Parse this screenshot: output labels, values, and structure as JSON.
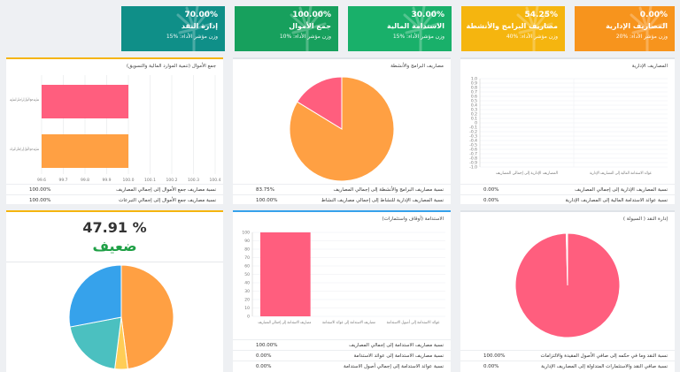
{
  "tiles": [
    {
      "pct": "70.00%",
      "title": "إدارة النقد",
      "sub": "وزن مؤشر الأداء: %15",
      "color": "#0f8f88"
    },
    {
      "pct": "100.00%",
      "title": "جمع الأموال",
      "sub": "وزن مؤشر الأداء: %10",
      "color": "#17a05d"
    },
    {
      "pct": "30.00%",
      "title": "الاستدامة المالية",
      "sub": "وزن مؤشر الأداء: %15",
      "color": "#19b06a"
    },
    {
      "pct": "54.25%",
      "title": "مصاريف البرامج والأنشطة",
      "sub": "وزن مؤشر الأداء: %40",
      "color": "#f5b50f"
    },
    {
      "pct": "0.00%",
      "title": "المصاريف الإدارية",
      "sub": "وزن مؤشر الأداء: %20",
      "color": "#f7941d"
    }
  ],
  "cards": {
    "funds": {
      "title": "جمع الأموال (تنمية الموارد المالية والتسويق)",
      "rows": [
        {
          "label": "نسبة مصاريف جمع الأموال إلى إجمالي المصاريف",
          "value": "100.00%"
        },
        {
          "label": "نسبة مصاريف جمع الأموال إلى إجمالي التبرعات",
          "value": "100.00%"
        }
      ]
    },
    "programs": {
      "title": "مصاريف البرامج والأنشطة",
      "rows": [
        {
          "label": "نسبة مصاريف البرامج والأنشطة إلى إجمالي المصاريف",
          "value": "83.75%"
        },
        {
          "label": "نسبة المصاريف الإدارية للنشاط إلى إجمالي مصاريف النشاط",
          "value": "100.00%"
        }
      ]
    },
    "admin": {
      "title": "المصاريف الإدارية",
      "rows": [
        {
          "label": "نسبة المصاريف الإدارية إلى إجمالي المصاريف",
          "value": "0.00%"
        },
        {
          "label": "نسبة عوائد الاستدامة المالية إلى المصاريف الإدارية",
          "value": "0.00%"
        }
      ]
    },
    "score": {
      "value": "47.91 %",
      "rating": "ضعيف"
    },
    "sustain": {
      "title": "الاستدامة (أوقاف واستثمارات)",
      "rows": [
        {
          "label": "نسبة مصاريف الاستدامة إلى إجمالي المصاريف",
          "value": "100.00%"
        },
        {
          "label": "نسبة مصاريف الاستدامة إلى عوائد الاستدامة",
          "value": "0.00%"
        },
        {
          "label": "نسبة عوائد الاستدامة إلى إجمالي أصول الاستدامة",
          "value": "0.00%"
        }
      ]
    },
    "cash": {
      "title": "إدارة النقد ( السيولة )",
      "rows": [
        {
          "label": "نسبة النقد وما في حكمه إلى صافي الأصول المقيدة والالتزامات",
          "value": "100.00%"
        },
        {
          "label": "نسبة صافي النقد والاستثمارات المتداولة إلى المصاريف الإدارية",
          "value": "0.00%"
        }
      ]
    }
  },
  "chart_data": [
    {
      "type": "bar",
      "orientation": "horizontal",
      "categories": [
        "مصاريف جمع الأموال إلى إجمالي المصاريف",
        "مصاريف جمع الأموال إلى إجمالي التبرعات"
      ],
      "values": [
        100,
        100
      ],
      "colors": [
        "#ff5e7e",
        "#ffa043"
      ],
      "xticks": [
        "99.6",
        "99.7",
        "99.8",
        "99.9",
        "100.0",
        "100.1",
        "100.2",
        "100.3",
        "100.4"
      ],
      "xlim": [
        99.6,
        100.4
      ]
    },
    {
      "type": "pie",
      "values": [
        83.75,
        16.25
      ],
      "colors": [
        "#ffa043",
        "#ff5e7e"
      ]
    },
    {
      "type": "bar",
      "categories": [
        "المصاريف الإدارية إلى إجمالي المصاريف",
        "عوائد الاستدامة المالية إلى المصاريف الإدارية"
      ],
      "values": [
        0,
        0
      ],
      "yticks": [
        "1.0",
        "0.9",
        "0.8",
        "0.7",
        "0.6",
        "0.5",
        "0.4",
        "0.3",
        "0.2",
        "0.1",
        "0",
        "-0.1",
        "-0.2",
        "-0.3",
        "-0.4",
        "-0.5",
        "-0.6",
        "-0.7",
        "-0.8",
        "-0.9",
        "-1.0"
      ],
      "ylim": [
        -1,
        1
      ]
    },
    {
      "type": "pie",
      "values": [
        48,
        4,
        20,
        28
      ],
      "colors": [
        "#ffa043",
        "#ffcd56",
        "#4bc0c0",
        "#36a2eb"
      ]
    },
    {
      "type": "bar",
      "categories": [
        "مصاريف الاستدامة إلى إجمالي المصاريف",
        "مصاريف الاستدامة إلى عوائد الاستدامة",
        "عوائد الاستدامة إلى أصول الاستدامة"
      ],
      "values": [
        100,
        0,
        0
      ],
      "color": "#ff5e7e",
      "yticks": [
        "100",
        "90",
        "80",
        "70",
        "60",
        "50",
        "40",
        "30",
        "20",
        "10",
        "0"
      ],
      "ylim": [
        0,
        100
      ]
    },
    {
      "type": "pie",
      "values": [
        99.6,
        0.4
      ],
      "colors": [
        "#ff5e7e",
        "#ffffff"
      ]
    }
  ]
}
